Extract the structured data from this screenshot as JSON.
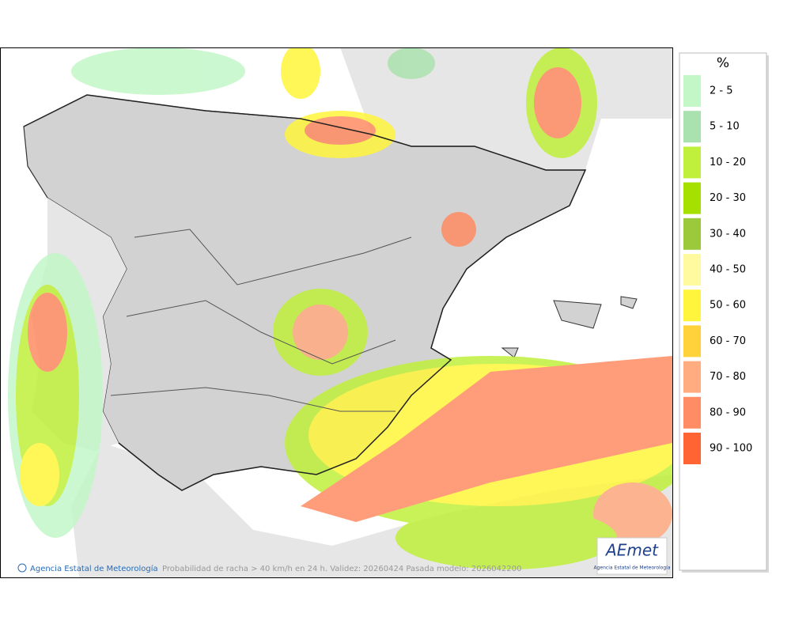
{
  "legend": {
    "title": "%",
    "items": [
      {
        "label": "2 - 5",
        "color": "#c3f7c8"
      },
      {
        "label": "5 - 10",
        "color": "#a9e2ae"
      },
      {
        "label": "10 - 20",
        "color": "#c0f03c"
      },
      {
        "label": "20 - 30",
        "color": "#a6e000"
      },
      {
        "label": "30 - 40",
        "color": "#9cc93c"
      },
      {
        "label": "40 - 50",
        "color": "#fffaa0"
      },
      {
        "label": "50 - 60",
        "color": "#fff53c"
      },
      {
        "label": "60 - 70",
        "color": "#ffd23c"
      },
      {
        "label": "70 - 80",
        "color": "#ffac80"
      },
      {
        "label": "80 - 90",
        "color": "#ff8c64"
      },
      {
        "label": "90 - 100",
        "color": "#ff6432"
      }
    ]
  },
  "footer": {
    "credit": "Agencia Estatal de Meteorología",
    "caption": "Probabilidad de racha > 40 km/h en 24 h. Validez: 20260424 Pasada modelo: 2026042200"
  },
  "logo": {
    "name": "AEmet",
    "subtitle": "Agencia Estatal de Meteorología"
  }
}
